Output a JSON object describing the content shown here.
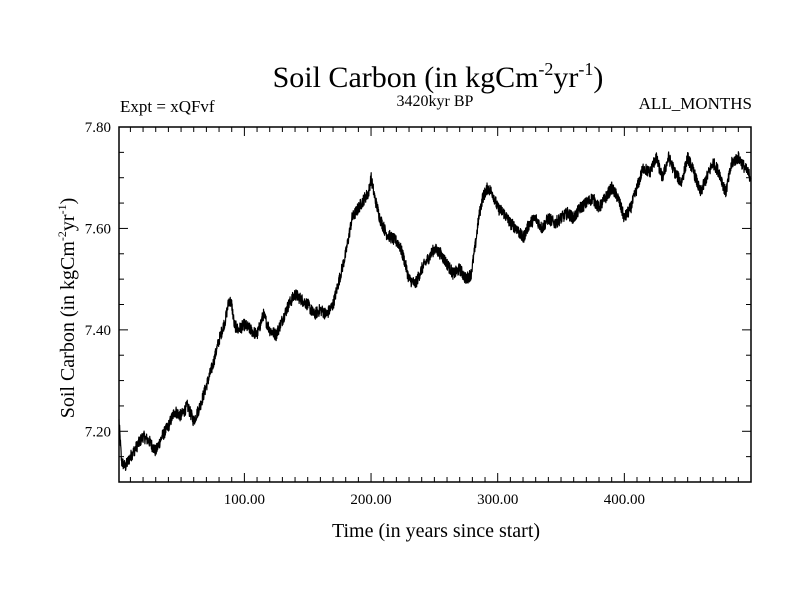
{
  "chart_data": {
    "type": "line",
    "title": "Soil Carbon (in kgCm",
    "title_sup1": "-2",
    "title_mid": "yr",
    "title_sup2": "-1",
    "title_end": ")",
    "subtitle_left": "Expt = xQFvf",
    "subtitle_center": "3420kyr BP",
    "subtitle_right": "ALL_MONTHS",
    "xlabel": "Time (in years since start)",
    "ylabel": "Soil Carbon (in kgCm",
    "ylabel_sup1": "-2",
    "ylabel_mid": "yr",
    "ylabel_sup2": "-1",
    "ylabel_end": ")",
    "xlim": [
      1,
      500
    ],
    "ylim": [
      7.1,
      7.8
    ],
    "xticks": [
      100,
      200,
      300,
      400
    ],
    "xtick_labels": [
      "100.00",
      "200.00",
      "300.00",
      "400.00"
    ],
    "yticks": [
      7.2,
      7.4,
      7.6,
      7.8
    ],
    "ytick_labels": [
      "7.20",
      "7.40",
      "7.60",
      "7.80"
    ],
    "grid": false,
    "series": [
      {
        "name": "Soil Carbon",
        "color": "#000000",
        "noise_amplitude": 0.012,
        "x": [
          1,
          3,
          6,
          10,
          15,
          20,
          25,
          30,
          35,
          40,
          45,
          50,
          55,
          60,
          65,
          70,
          75,
          80,
          85,
          88,
          90,
          92,
          95,
          100,
          105,
          110,
          115,
          120,
          125,
          130,
          135,
          140,
          145,
          150,
          155,
          160,
          165,
          170,
          175,
          180,
          185,
          190,
          195,
          198,
          200,
          203,
          207,
          212,
          217,
          222,
          226,
          230,
          235,
          240,
          245,
          250,
          255,
          260,
          265,
          270,
          275,
          279,
          282,
          285,
          288,
          292,
          296,
          300,
          305,
          310,
          315,
          320,
          325,
          330,
          335,
          340,
          345,
          350,
          355,
          360,
          365,
          370,
          375,
          380,
          385,
          390,
          395,
          400,
          405,
          410,
          415,
          420,
          425,
          430,
          435,
          440,
          445,
          450,
          455,
          460,
          465,
          470,
          475,
          480,
          485,
          490,
          495,
          500
        ],
        "values": [
          7.22,
          7.14,
          7.13,
          7.15,
          7.17,
          7.19,
          7.18,
          7.16,
          7.19,
          7.21,
          7.24,
          7.23,
          7.25,
          7.22,
          7.25,
          7.29,
          7.33,
          7.38,
          7.42,
          7.46,
          7.45,
          7.41,
          7.4,
          7.41,
          7.4,
          7.39,
          7.43,
          7.4,
          7.39,
          7.42,
          7.45,
          7.47,
          7.46,
          7.45,
          7.43,
          7.44,
          7.43,
          7.45,
          7.5,
          7.55,
          7.62,
          7.64,
          7.66,
          7.67,
          7.7,
          7.66,
          7.62,
          7.59,
          7.58,
          7.57,
          7.54,
          7.5,
          7.49,
          7.52,
          7.54,
          7.56,
          7.55,
          7.53,
          7.51,
          7.52,
          7.5,
          7.51,
          7.56,
          7.62,
          7.66,
          7.68,
          7.67,
          7.64,
          7.63,
          7.61,
          7.6,
          7.58,
          7.61,
          7.62,
          7.6,
          7.62,
          7.61,
          7.62,
          7.63,
          7.62,
          7.64,
          7.65,
          7.66,
          7.64,
          7.66,
          7.68,
          7.66,
          7.62,
          7.64,
          7.68,
          7.72,
          7.71,
          7.74,
          7.7,
          7.74,
          7.71,
          7.69,
          7.74,
          7.71,
          7.67,
          7.7,
          7.73,
          7.71,
          7.67,
          7.73,
          7.74,
          7.72,
          7.7
        ]
      }
    ]
  }
}
